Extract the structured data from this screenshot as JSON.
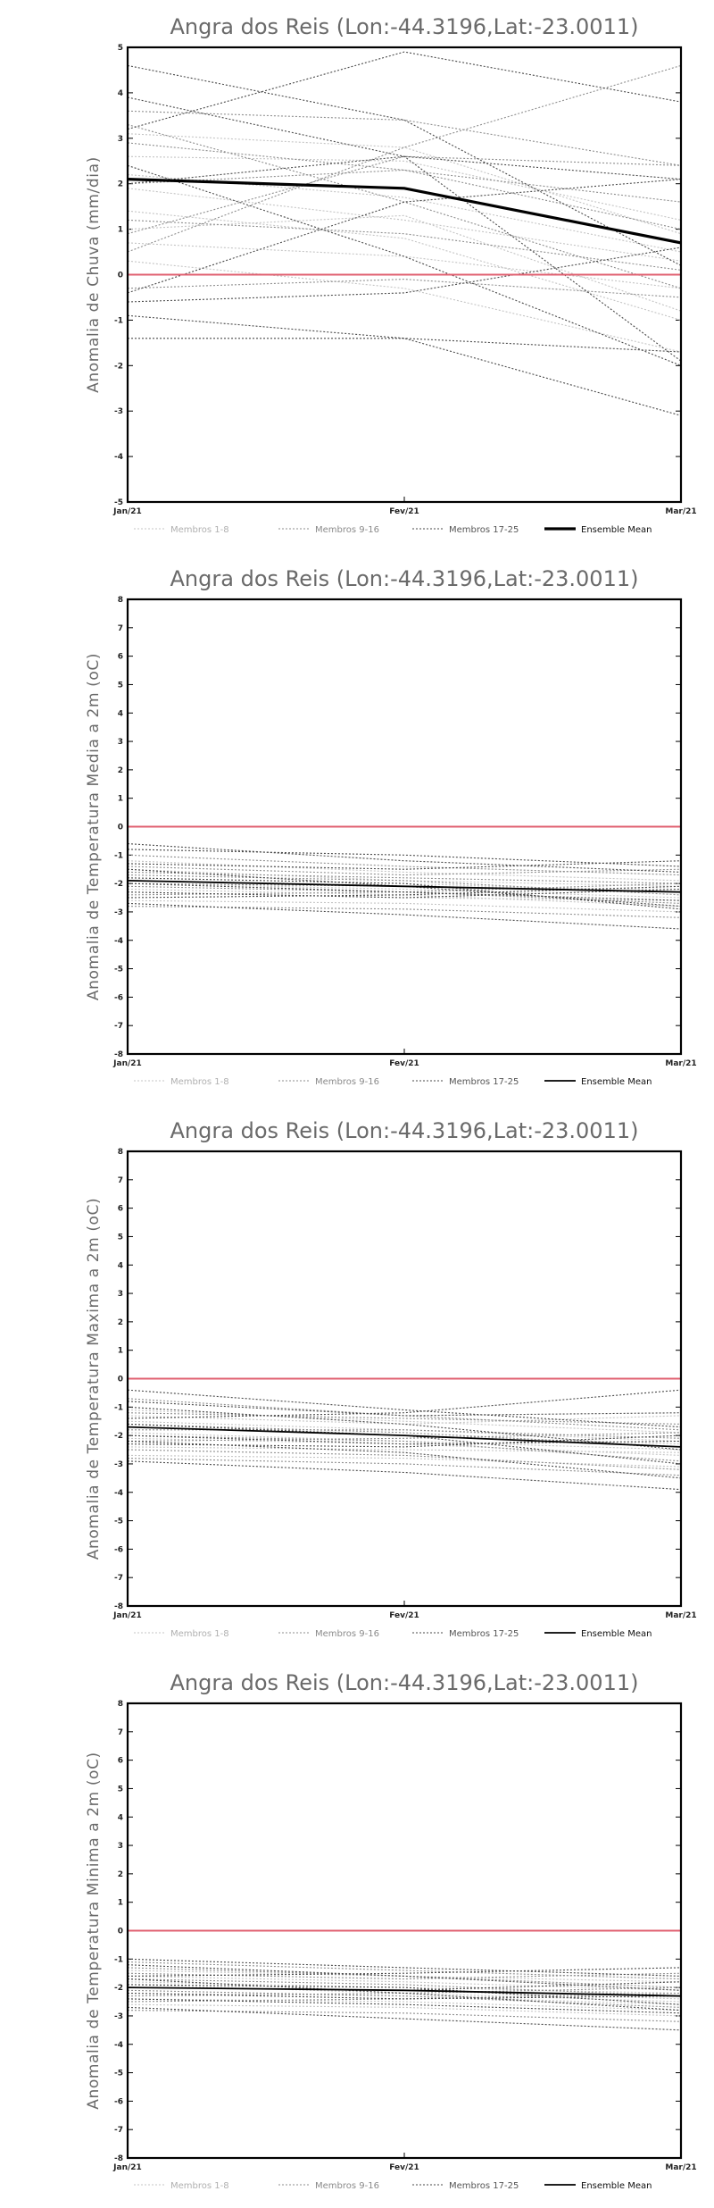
{
  "chart_data": [
    {
      "type": "line",
      "title": "Angra dos Reis (Lon:-44.3196,Lat:-23.0011)",
      "ylabel": "Anomalia de Chuva (mm/dia)",
      "xlabel": "",
      "x": [
        "Jan/21",
        "Fev/21",
        "Mar/21"
      ],
      "ylim": [
        -5,
        5
      ],
      "yticks": [
        "-5",
        "-4",
        "-3",
        "-2",
        "-1",
        "0",
        "1",
        "2",
        "3",
        "4",
        "5"
      ],
      "grid": false,
      "zero_line_color": "#e06070",
      "legend": [
        {
          "label": "Membros 1-8",
          "style": "light-dotted"
        },
        {
          "label": "Membros 9-16",
          "style": "grey-dotted"
        },
        {
          "label": "Membros 17-25",
          "style": "dark-dotted"
        },
        {
          "label": "Ensemble Mean",
          "style": "solid"
        }
      ],
      "legend_position": "bottom",
      "mean_width": 3.2,
      "series": [
        {
          "group": 1,
          "values": [
            2.6,
            2.5,
            1.2
          ]
        },
        {
          "group": 1,
          "values": [
            1.9,
            1.2,
            0.3
          ]
        },
        {
          "group": 1,
          "values": [
            1.4,
            0.8,
            -1.0
          ]
        },
        {
          "group": 1,
          "values": [
            0.7,
            0.4,
            -0.3
          ]
        },
        {
          "group": 1,
          "values": [
            3.1,
            2.8,
            0.9
          ]
        },
        {
          "group": 1,
          "values": [
            0.3,
            -0.3,
            -1.7
          ]
        },
        {
          "group": 1,
          "values": [
            2.2,
            1.7,
            0.5
          ]
        },
        {
          "group": 1,
          "values": [
            1.0,
            1.3,
            -0.8
          ]
        },
        {
          "group": 2,
          "values": [
            3.6,
            3.4,
            2.4
          ]
        },
        {
          "group": 2,
          "values": [
            2.0,
            2.3,
            1.0
          ]
        },
        {
          "group": 2,
          "values": [
            0.9,
            2.6,
            2.4
          ]
        },
        {
          "group": 2,
          "values": [
            -0.3,
            -0.1,
            -0.5
          ]
        },
        {
          "group": 2,
          "values": [
            3.3,
            1.6,
            -0.3
          ]
        },
        {
          "group": 2,
          "values": [
            1.2,
            0.9,
            0.1
          ]
        },
        {
          "group": 2,
          "values": [
            0.5,
            2.8,
            4.6
          ]
        },
        {
          "group": 2,
          "values": [
            2.9,
            2.3,
            1.6
          ]
        },
        {
          "group": 3,
          "values": [
            4.6,
            3.4,
            0.2
          ]
        },
        {
          "group": 3,
          "values": [
            3.9,
            2.6,
            -1.9
          ]
        },
        {
          "group": 3,
          "values": [
            2.4,
            0.4,
            -2.0
          ]
        },
        {
          "group": 3,
          "values": [
            -0.4,
            1.6,
            2.1
          ]
        },
        {
          "group": 3,
          "values": [
            -0.9,
            -1.4,
            -3.1
          ]
        },
        {
          "group": 3,
          "values": [
            -1.4,
            -1.4,
            -1.7
          ]
        },
        {
          "group": 3,
          "values": [
            3.2,
            4.9,
            3.8
          ]
        },
        {
          "group": 3,
          "values": [
            2.0,
            2.6,
            2.1
          ]
        },
        {
          "group": 3,
          "values": [
            -0.6,
            -0.4,
            0.6
          ]
        },
        {
          "group": "mean",
          "values": [
            2.1,
            1.9,
            0.7
          ]
        }
      ]
    },
    {
      "type": "line",
      "title": "Angra dos Reis (Lon:-44.3196,Lat:-23.0011)",
      "ylabel": "Anomalia de Temperatura Media a 2m (oC)",
      "xlabel": "",
      "x": [
        "Jan/21",
        "Fev/21",
        "Mar/21"
      ],
      "ylim": [
        -8,
        8
      ],
      "yticks": [
        "-8",
        "-7",
        "-6",
        "-5",
        "-4",
        "-3",
        "-2",
        "-1",
        "0",
        "1",
        "2",
        "3",
        "4",
        "5",
        "6",
        "7",
        "8"
      ],
      "grid": false,
      "zero_line_color": "#e06070",
      "legend": [
        {
          "label": "Membros 1-8",
          "style": "light-dotted"
        },
        {
          "label": "Membros 9-16",
          "style": "grey-dotted"
        },
        {
          "label": "Membros 17-25",
          "style": "dark-dotted"
        },
        {
          "label": "Ensemble Mean",
          "style": "solid"
        }
      ],
      "legend_position": "bottom",
      "mean_width": 1.8,
      "series": [
        {
          "group": 1,
          "values": [
            -1.8,
            -2.0,
            -2.3
          ]
        },
        {
          "group": 1,
          "values": [
            -2.3,
            -2.5,
            -2.6
          ]
        },
        {
          "group": 1,
          "values": [
            -1.5,
            -1.9,
            -2.1
          ]
        },
        {
          "group": 1,
          "values": [
            -2.0,
            -2.2,
            -2.5
          ]
        },
        {
          "group": 1,
          "values": [
            -1.2,
            -1.6,
            -1.9
          ]
        },
        {
          "group": 1,
          "values": [
            -2.6,
            -2.7,
            -3.0
          ]
        },
        {
          "group": 1,
          "values": [
            -1.9,
            -2.1,
            -2.2
          ]
        },
        {
          "group": 1,
          "values": [
            -2.2,
            -2.4,
            -2.8
          ]
        },
        {
          "group": 2,
          "values": [
            -1.0,
            -1.4,
            -1.7
          ]
        },
        {
          "group": 2,
          "values": [
            -2.4,
            -2.3,
            -2.0
          ]
        },
        {
          "group": 2,
          "values": [
            -1.7,
            -1.9,
            -2.4
          ]
        },
        {
          "group": 2,
          "values": [
            -2.1,
            -2.3,
            -2.7
          ]
        },
        {
          "group": 2,
          "values": [
            -1.4,
            -1.7,
            -1.5
          ]
        },
        {
          "group": 2,
          "values": [
            -2.8,
            -2.9,
            -3.2
          ]
        },
        {
          "group": 2,
          "values": [
            -1.6,
            -1.8,
            -2.0
          ]
        },
        {
          "group": 2,
          "values": [
            -2.0,
            -2.1,
            -2.3
          ]
        },
        {
          "group": 3,
          "values": [
            -0.6,
            -1.2,
            -1.6
          ]
        },
        {
          "group": 3,
          "values": [
            -2.7,
            -3.1,
            -3.6
          ]
        },
        {
          "group": 3,
          "values": [
            -1.8,
            -2.0,
            -2.9
          ]
        },
        {
          "group": 3,
          "values": [
            -2.3,
            -2.5,
            -2.2
          ]
        },
        {
          "group": 3,
          "values": [
            -1.3,
            -1.5,
            -1.2
          ]
        },
        {
          "group": 3,
          "values": [
            -2.0,
            -2.3,
            -2.6
          ]
        },
        {
          "group": 3,
          "values": [
            -2.5,
            -2.4,
            -2.1
          ]
        },
        {
          "group": 3,
          "values": [
            -1.5,
            -2.1,
            -2.8
          ]
        },
        {
          "group": 3,
          "values": [
            -0.8,
            -1.0,
            -1.4
          ]
        },
        {
          "group": "mean",
          "values": [
            -1.9,
            -2.1,
            -2.3
          ]
        }
      ]
    },
    {
      "type": "line",
      "title": "Angra dos Reis (Lon:-44.3196,Lat:-23.0011)",
      "ylabel": "Anomalia de Temperatura Maxima a 2m (oC)",
      "xlabel": "",
      "x": [
        "Jan/21",
        "Fev/21",
        "Mar/21"
      ],
      "ylim": [
        -8,
        8
      ],
      "yticks": [
        "-8",
        "-7",
        "-6",
        "-5",
        "-4",
        "-3",
        "-2",
        "-1",
        "0",
        "1",
        "2",
        "3",
        "4",
        "5",
        "6",
        "7",
        "8"
      ],
      "grid": false,
      "zero_line_color": "#e06070",
      "legend": [
        {
          "label": "Membros 1-8",
          "style": "light-dotted"
        },
        {
          "label": "Membros 9-16",
          "style": "grey-dotted"
        },
        {
          "label": "Membros 17-25",
          "style": "dark-dotted"
        },
        {
          "label": "Ensemble Mean",
          "style": "solid"
        }
      ],
      "legend_position": "bottom",
      "mean_width": 1.8,
      "series": [
        {
          "group": 1,
          "values": [
            -1.5,
            -1.8,
            -2.2
          ]
        },
        {
          "group": 1,
          "values": [
            -2.1,
            -2.3,
            -2.7
          ]
        },
        {
          "group": 1,
          "values": [
            -1.1,
            -1.5,
            -1.9
          ]
        },
        {
          "group": 1,
          "values": [
            -2.7,
            -2.8,
            -3.1
          ]
        },
        {
          "group": 1,
          "values": [
            -1.7,
            -2.0,
            -2.3
          ]
        },
        {
          "group": 1,
          "values": [
            -1.3,
            -1.6,
            -1.3
          ]
        },
        {
          "group": 1,
          "values": [
            -2.4,
            -2.5,
            -2.6
          ]
        },
        {
          "group": 1,
          "values": [
            -1.9,
            -2.2,
            -2.5
          ]
        },
        {
          "group": 2,
          "values": [
            -0.7,
            -1.3,
            -1.8
          ]
        },
        {
          "group": 2,
          "values": [
            -2.2,
            -2.1,
            -1.9
          ]
        },
        {
          "group": 2,
          "values": [
            -1.6,
            -1.9,
            -2.4
          ]
        },
        {
          "group": 2,
          "values": [
            -2.8,
            -3.0,
            -3.4
          ]
        },
        {
          "group": 2,
          "values": [
            -1.2,
            -1.4,
            -1.6
          ]
        },
        {
          "group": 2,
          "values": [
            -2.0,
            -2.2,
            -2.9
          ]
        },
        {
          "group": 2,
          "values": [
            -1.8,
            -1.8,
            -2.1
          ]
        },
        {
          "group": 2,
          "values": [
            -2.5,
            -2.7,
            -3.2
          ]
        },
        {
          "group": 3,
          "values": [
            -0.4,
            -1.1,
            -1.7
          ]
        },
        {
          "group": 3,
          "values": [
            -2.9,
            -3.3,
            -3.9
          ]
        },
        {
          "group": 3,
          "values": [
            -1.4,
            -1.2,
            -0.4
          ]
        },
        {
          "group": 3,
          "values": [
            -2.0,
            -2.3,
            -2.2
          ]
        },
        {
          "group": 3,
          "values": [
            -1.0,
            -1.6,
            -2.5
          ]
        },
        {
          "group": 3,
          "values": [
            -2.3,
            -2.4,
            -2.0
          ]
        },
        {
          "group": 3,
          "values": [
            -1.6,
            -2.0,
            -3.0
          ]
        },
        {
          "group": 3,
          "values": [
            -0.8,
            -1.3,
            -1.2
          ]
        },
        {
          "group": 3,
          "values": [
            -2.2,
            -2.6,
            -3.5
          ]
        },
        {
          "group": "mean",
          "values": [
            -1.7,
            -2.0,
            -2.4
          ]
        }
      ]
    },
    {
      "type": "line",
      "title": "Angra dos Reis (Lon:-44.3196,Lat:-23.0011)",
      "ylabel": "Anomalia de Temperatura Minima a 2m (oC)",
      "xlabel": "",
      "x": [
        "Jan/21",
        "Fev/21",
        "Mar/21"
      ],
      "ylim": [
        -8,
        8
      ],
      "yticks": [
        "-8",
        "-7",
        "-6",
        "-5",
        "-4",
        "-3",
        "-2",
        "-1",
        "0",
        "1",
        "2",
        "3",
        "4",
        "5",
        "6",
        "7",
        "8"
      ],
      "grid": false,
      "zero_line_color": "#e06070",
      "legend": [
        {
          "label": "Membros 1-8",
          "style": "light-dotted"
        },
        {
          "label": "Membros 9-16",
          "style": "grey-dotted"
        },
        {
          "label": "Membros 17-25",
          "style": "dark-dotted"
        },
        {
          "label": "Ensemble Mean",
          "style": "solid"
        }
      ],
      "legend_position": "bottom",
      "mean_width": 1.8,
      "series": [
        {
          "group": 1,
          "values": [
            -2.0,
            -2.1,
            -2.4
          ]
        },
        {
          "group": 1,
          "values": [
            -1.6,
            -1.8,
            -2.1
          ]
        },
        {
          "group": 1,
          "values": [
            -2.4,
            -2.5,
            -2.8
          ]
        },
        {
          "group": 1,
          "values": [
            -1.8,
            -2.0,
            -2.2
          ]
        },
        {
          "group": 1,
          "values": [
            -2.2,
            -2.3,
            -2.6
          ]
        },
        {
          "group": 1,
          "values": [
            -1.4,
            -1.6,
            -1.8
          ]
        },
        {
          "group": 1,
          "values": [
            -2.6,
            -2.7,
            -3.0
          ]
        },
        {
          "group": 1,
          "values": [
            -1.9,
            -2.2,
            -2.5
          ]
        },
        {
          "group": 2,
          "values": [
            -1.1,
            -1.4,
            -1.7
          ]
        },
        {
          "group": 2,
          "values": [
            -2.3,
            -2.2,
            -2.0
          ]
        },
        {
          "group": 2,
          "values": [
            -1.7,
            -1.9,
            -2.3
          ]
        },
        {
          "group": 2,
          "values": [
            -2.8,
            -2.9,
            -3.2
          ]
        },
        {
          "group": 2,
          "values": [
            -1.5,
            -1.7,
            -1.5
          ]
        },
        {
          "group": 2,
          "values": [
            -2.1,
            -2.3,
            -2.7
          ]
        },
        {
          "group": 2,
          "values": [
            -1.3,
            -1.6,
            -2.0
          ]
        },
        {
          "group": 2,
          "values": [
            -2.5,
            -2.4,
            -2.2
          ]
        },
        {
          "group": 3,
          "values": [
            -1.0,
            -1.3,
            -1.6
          ]
        },
        {
          "group": 3,
          "values": [
            -2.7,
            -3.1,
            -3.5
          ]
        },
        {
          "group": 3,
          "values": [
            -1.6,
            -1.5,
            -1.3
          ]
        },
        {
          "group": 3,
          "values": [
            -2.2,
            -2.4,
            -2.3
          ]
        },
        {
          "group": 3,
          "values": [
            -1.9,
            -2.0,
            -2.6
          ]
        },
        {
          "group": 3,
          "values": [
            -2.4,
            -2.6,
            -2.9
          ]
        },
        {
          "group": 3,
          "values": [
            -1.2,
            -1.6,
            -2.1
          ]
        },
        {
          "group": 3,
          "values": [
            -2.0,
            -2.1,
            -1.8
          ]
        },
        {
          "group": 3,
          "values": [
            -1.7,
            -2.2,
            -2.8
          ]
        },
        {
          "group": "mean",
          "values": [
            -2.0,
            -2.1,
            -2.3
          ]
        }
      ]
    }
  ]
}
